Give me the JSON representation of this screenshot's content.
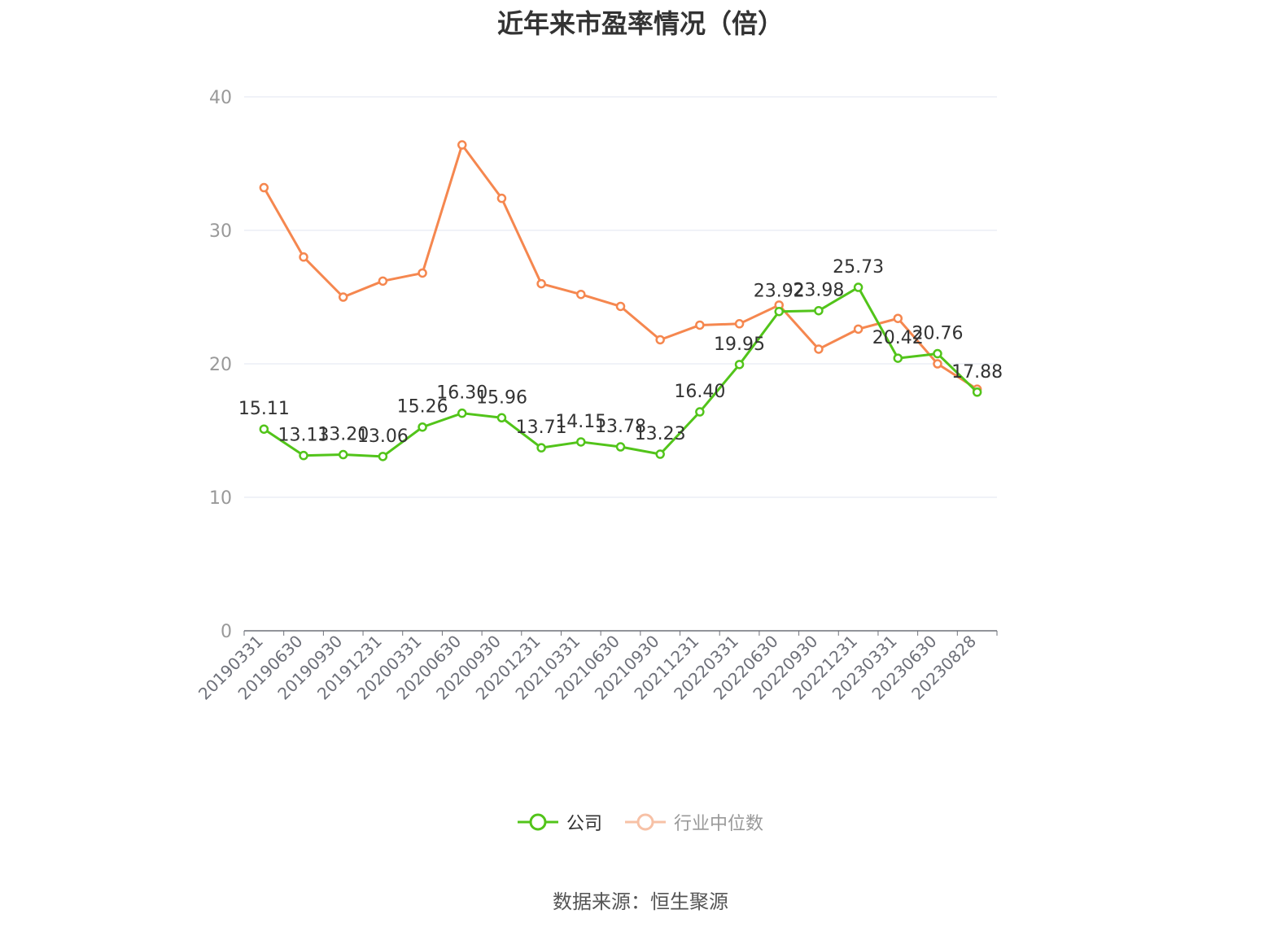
{
  "title": "近年来市盈率情况（倍）",
  "source": "数据来源：恒生聚源",
  "colors": {
    "company": "#52c41a",
    "industry": "#f5874f",
    "grid": "#e0e6f1",
    "axis": "#6e7079"
  },
  "chart_data": {
    "type": "line",
    "title": "近年来市盈率情况（倍）",
    "categories": [
      "20190331",
      "20190630",
      "20190930",
      "20191231",
      "20200331",
      "20200630",
      "20200930",
      "20201231",
      "20210331",
      "20210630",
      "20210930",
      "20211231",
      "20220331",
      "20220630",
      "20220930",
      "20221231",
      "20230331",
      "20230630",
      "20230828"
    ],
    "ylim": [
      0,
      40
    ],
    "yticks": [
      0,
      10,
      20,
      30,
      40
    ],
    "grid": true,
    "legend_position": "bottom",
    "series": [
      {
        "name": "公司",
        "values": [
          15.11,
          13.13,
          13.2,
          13.06,
          15.26,
          16.3,
          15.96,
          13.71,
          14.15,
          13.78,
          13.23,
          16.4,
          19.95,
          23.92,
          23.98,
          25.73,
          20.42,
          20.76,
          17.88
        ],
        "labels": [
          "15.11",
          "13.13",
          "13.20",
          "13.06",
          "15.26",
          "16.30",
          "15.96",
          "13.71",
          "14.15",
          "13.78",
          "13.23",
          "16.40",
          "19.95",
          "23.92",
          "23.98",
          "25.73",
          "20.42",
          "20.76",
          "17.88"
        ]
      },
      {
        "name": "行业中位数",
        "values": [
          33.2,
          28.0,
          25.0,
          26.2,
          26.8,
          36.4,
          32.4,
          26.0,
          25.2,
          24.3,
          21.8,
          22.9,
          23.0,
          24.4,
          21.1,
          22.6,
          23.4,
          20.0,
          18.1
        ]
      }
    ]
  }
}
